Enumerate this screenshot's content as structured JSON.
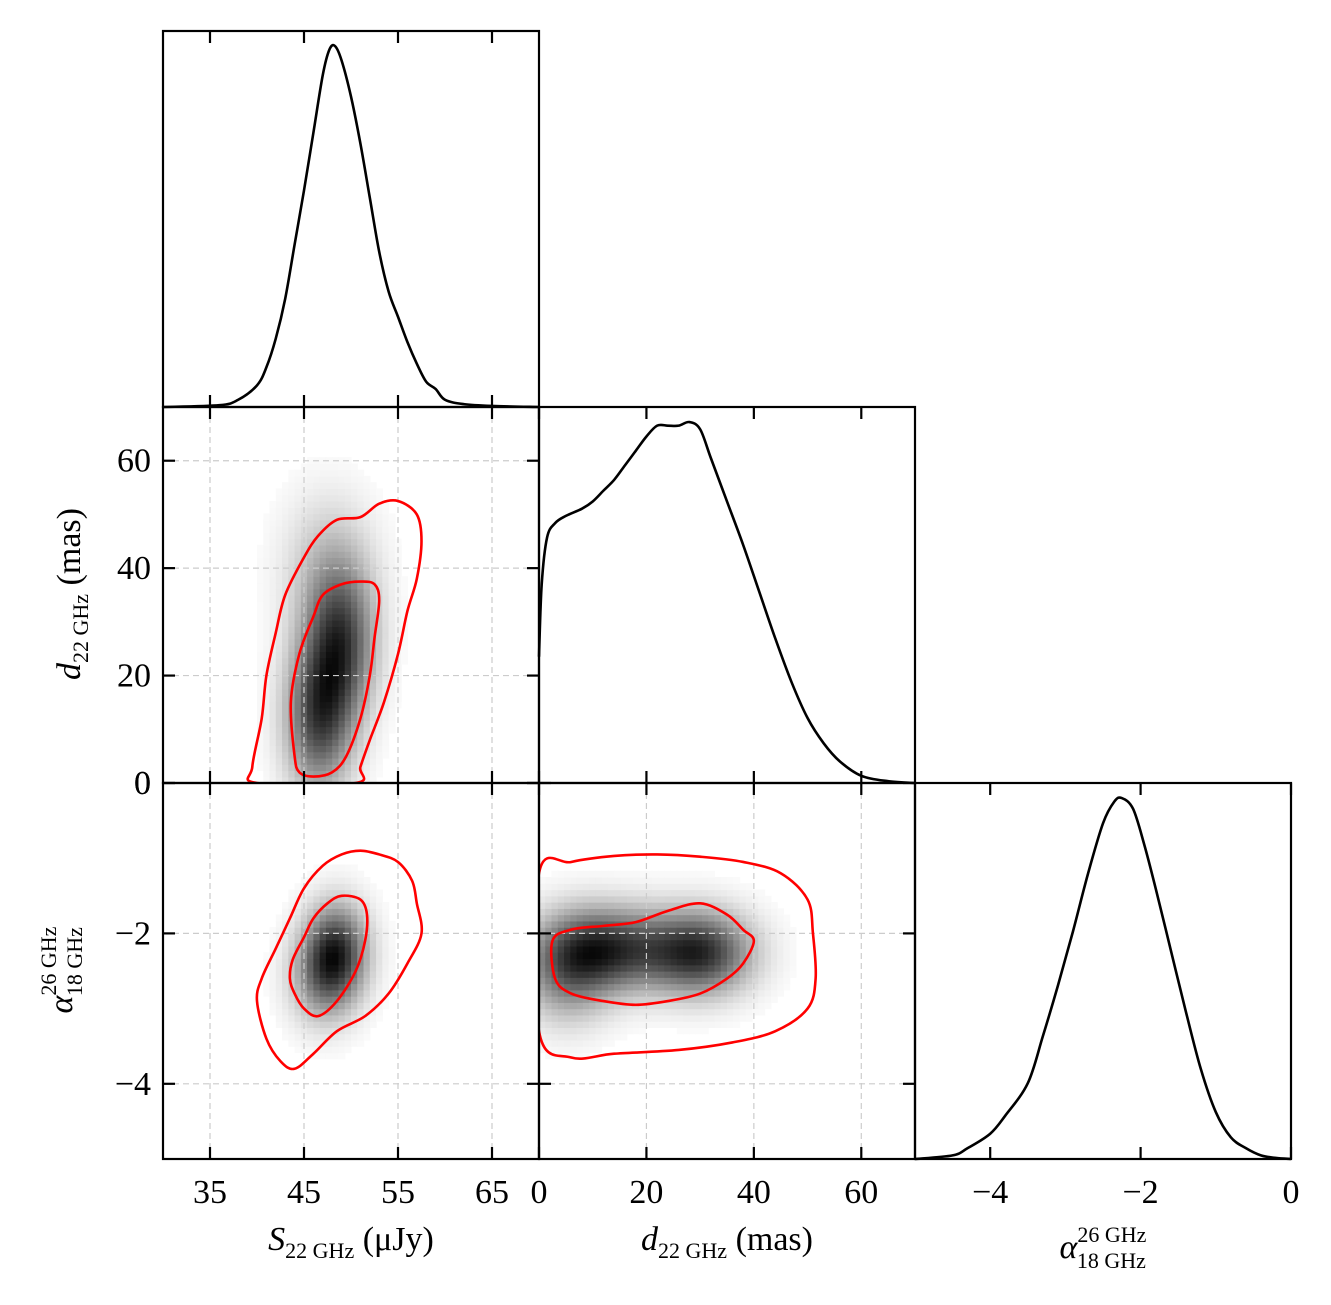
{
  "chart_data": {
    "type": "corner",
    "parameters": [
      {
        "id": "S",
        "range": [
          30,
          70
        ],
        "ticks": [
          35,
          45,
          55,
          65
        ],
        "tick_labels": [
          "35",
          "45",
          "55",
          "65"
        ]
      },
      {
        "id": "d",
        "range": [
          0,
          70
        ],
        "ticks": [
          0,
          20,
          40,
          60
        ],
        "tick_labels": [
          "0",
          "20",
          "40",
          "60"
        ]
      },
      {
        "id": "a",
        "range": [
          -5,
          0
        ],
        "ticks": [
          -4,
          -2,
          0
        ],
        "tick_labels": [
          "−4",
          "−2",
          "0"
        ]
      }
    ],
    "axis_labels": {
      "S": {
        "main": "S",
        "sub": "22 GHz",
        "unit": " (μJy)"
      },
      "d": {
        "main": "d",
        "sub": "22 GHz",
        "unit": " (mas)"
      },
      "a": {
        "main": "α",
        "sup": "26 GHz",
        "sub": "18 GHz"
      }
    },
    "grid": true,
    "contour_color": "#ff0000",
    "line_color": "#000000",
    "marginals": {
      "S": {
        "x": [
          30,
          36,
          38,
          40,
          41,
          42,
          43,
          44,
          45,
          46,
          47,
          47.7,
          48.3,
          49,
          50,
          51,
          52,
          53,
          54,
          55,
          56,
          57,
          58,
          59,
          60,
          62,
          65,
          70
        ],
        "y": [
          0,
          0.005,
          0.02,
          0.06,
          0.11,
          0.19,
          0.3,
          0.45,
          0.6,
          0.76,
          0.92,
          0.99,
          1.0,
          0.96,
          0.86,
          0.73,
          0.58,
          0.43,
          0.32,
          0.25,
          0.18,
          0.12,
          0.07,
          0.05,
          0.02,
          0.008,
          0.003,
          0
        ]
      },
      "d": {
        "x": [
          0,
          0.5,
          1.5,
          3,
          5,
          8,
          10,
          12,
          14,
          16,
          18,
          20,
          22,
          24,
          26,
          28,
          30,
          32,
          35,
          38,
          41,
          44,
          47,
          50,
          53,
          56,
          60,
          65,
          70
        ],
        "y": [
          0.35,
          0.55,
          0.68,
          0.72,
          0.74,
          0.76,
          0.78,
          0.81,
          0.84,
          0.88,
          0.92,
          0.96,
          0.99,
          0.99,
          0.99,
          1.0,
          0.98,
          0.9,
          0.78,
          0.66,
          0.53,
          0.4,
          0.28,
          0.18,
          0.11,
          0.06,
          0.02,
          0.005,
          0
        ]
      },
      "a": {
        "x": [
          -5,
          -4.5,
          -4.3,
          -4.0,
          -3.8,
          -3.5,
          -3.3,
          -3.1,
          -2.9,
          -2.7,
          -2.5,
          -2.35,
          -2.25,
          -2.1,
          -1.95,
          -1.8,
          -1.6,
          -1.4,
          -1.2,
          -1.0,
          -0.8,
          -0.6,
          -0.4,
          -0.2,
          0
        ],
        "y": [
          0,
          0.01,
          0.03,
          0.07,
          0.12,
          0.21,
          0.34,
          0.48,
          0.63,
          0.79,
          0.93,
          0.99,
          1.0,
          0.97,
          0.87,
          0.75,
          0.58,
          0.41,
          0.25,
          0.13,
          0.06,
          0.03,
          0.01,
          0.003,
          0
        ]
      }
    },
    "joint": [
      {
        "x_param": "S",
        "y_param": "d",
        "density_centers": [
          {
            "x": 46.5,
            "y": 12,
            "sx": 2.6,
            "sy": 10,
            "w": 1.0
          },
          {
            "x": 49,
            "y": 26,
            "sx": 2.6,
            "sy": 10,
            "w": 0.95
          },
          {
            "x": 47.5,
            "y": 40,
            "sx": 3.5,
            "sy": 10,
            "w": 0.35
          }
        ],
        "contours": [
          [
            [
              44,
              5
            ],
            [
              43.6,
              15
            ],
            [
              44.5,
              24
            ],
            [
              46,
              31
            ],
            [
              47,
              35
            ],
            [
              49,
              37
            ],
            [
              51,
              37.5
            ],
            [
              52.5,
              37
            ],
            [
              53,
              34
            ],
            [
              52.5,
              27
            ],
            [
              52,
              20
            ],
            [
              51,
              12
            ],
            [
              49.5,
              5
            ],
            [
              48,
              2
            ],
            [
              46,
              1.2
            ],
            [
              44.5,
              2
            ]
          ],
          [
            [
              39.5,
              3
            ],
            [
              40.5,
              12
            ],
            [
              41,
              20
            ],
            [
              42,
              28
            ],
            [
              43,
              35
            ],
            [
              45,
              42
            ],
            [
              46.5,
              46
            ],
            [
              48.5,
              49
            ],
            [
              51,
              49.5
            ],
            [
              53,
              52
            ],
            [
              55,
              52.5
            ],
            [
              57,
              50
            ],
            [
              57.5,
              45
            ],
            [
              57,
              38
            ],
            [
              56,
              32
            ],
            [
              55,
              24
            ],
            [
              53.5,
              15
            ],
            [
              52,
              8
            ],
            [
              51,
              3
            ],
            [
              50.5,
              0
            ],
            [
              40,
              0
            ]
          ]
        ]
      },
      {
        "x_param": "S",
        "y_param": "a",
        "density_centers": [
          {
            "x": 48.5,
            "y": -2.2,
            "sx": 2.4,
            "sy": 0.45,
            "w": 1.0
          },
          {
            "x": 47,
            "y": -2.6,
            "sx": 2.6,
            "sy": 0.45,
            "w": 0.6
          }
        ],
        "contours": [
          [
            [
              43.5,
              -2.6
            ],
            [
              43.8,
              -2.35
            ],
            [
              45,
              -2.05
            ],
            [
              46,
              -1.8
            ],
            [
              47.5,
              -1.6
            ],
            [
              49,
              -1.5
            ],
            [
              51,
              -1.55
            ],
            [
              51.7,
              -1.75
            ],
            [
              51.5,
              -2.1
            ],
            [
              50.5,
              -2.5
            ],
            [
              48.5,
              -2.9
            ],
            [
              46.5,
              -3.1
            ],
            [
              45,
              -3.0
            ],
            [
              44,
              -2.8
            ]
          ],
          [
            [
              40,
              -2.9
            ],
            [
              40.5,
              -2.6
            ],
            [
              42,
              -2.2
            ],
            [
              43.5,
              -1.8
            ],
            [
              45,
              -1.4
            ],
            [
              47,
              -1.1
            ],
            [
              49,
              -0.95
            ],
            [
              51,
              -0.9
            ],
            [
              53,
              -0.95
            ],
            [
              55,
              -1.05
            ],
            [
              56.5,
              -1.3
            ],
            [
              57,
              -1.6
            ],
            [
              57.5,
              -2.0
            ],
            [
              56,
              -2.4
            ],
            [
              54,
              -2.8
            ],
            [
              51.5,
              -3.1
            ],
            [
              48.5,
              -3.3
            ],
            [
              46,
              -3.6
            ],
            [
              44,
              -3.8
            ],
            [
              42.5,
              -3.7
            ],
            [
              41,
              -3.4
            ]
          ]
        ]
      },
      {
        "x_param": "d",
        "y_param": "a",
        "density_centers": [
          {
            "x": 13,
            "y": -2.2,
            "sx": 8,
            "sy": 0.4,
            "w": 0.9
          },
          {
            "x": 30,
            "y": -2.25,
            "sx": 7,
            "sy": 0.4,
            "w": 1.0
          },
          {
            "x": 5,
            "y": -2.5,
            "sx": 6,
            "sy": 0.5,
            "w": 0.55
          }
        ],
        "contours": [
          [
            [
              3,
              -2.6
            ],
            [
              2.5,
              -2.1
            ],
            [
              6,
              -1.95
            ],
            [
              12,
              -1.9
            ],
            [
              18,
              -1.85
            ],
            [
              24,
              -1.7
            ],
            [
              30,
              -1.6
            ],
            [
              35,
              -1.75
            ],
            [
              38,
              -1.95
            ],
            [
              40,
              -2.1
            ],
            [
              38,
              -2.4
            ],
            [
              35,
              -2.6
            ],
            [
              30,
              -2.8
            ],
            [
              24,
              -2.9
            ],
            [
              18,
              -2.95
            ],
            [
              12,
              -2.9
            ],
            [
              6,
              -2.8
            ]
          ],
          [
            [
              0,
              -1.2
            ],
            [
              6,
              -1.05
            ],
            [
              14,
              -0.97
            ],
            [
              22,
              -0.95
            ],
            [
              30,
              -0.98
            ],
            [
              38,
              -1.05
            ],
            [
              45,
              -1.2
            ],
            [
              50,
              -1.55
            ],
            [
              51,
              -2.0
            ],
            [
              51.5,
              -2.6
            ],
            [
              50,
              -3.0
            ],
            [
              44,
              -3.3
            ],
            [
              36,
              -3.45
            ],
            [
              26,
              -3.55
            ],
            [
              14,
              -3.6
            ],
            [
              6,
              -3.65
            ],
            [
              0,
              -3.3
            ]
          ]
        ]
      }
    ]
  }
}
